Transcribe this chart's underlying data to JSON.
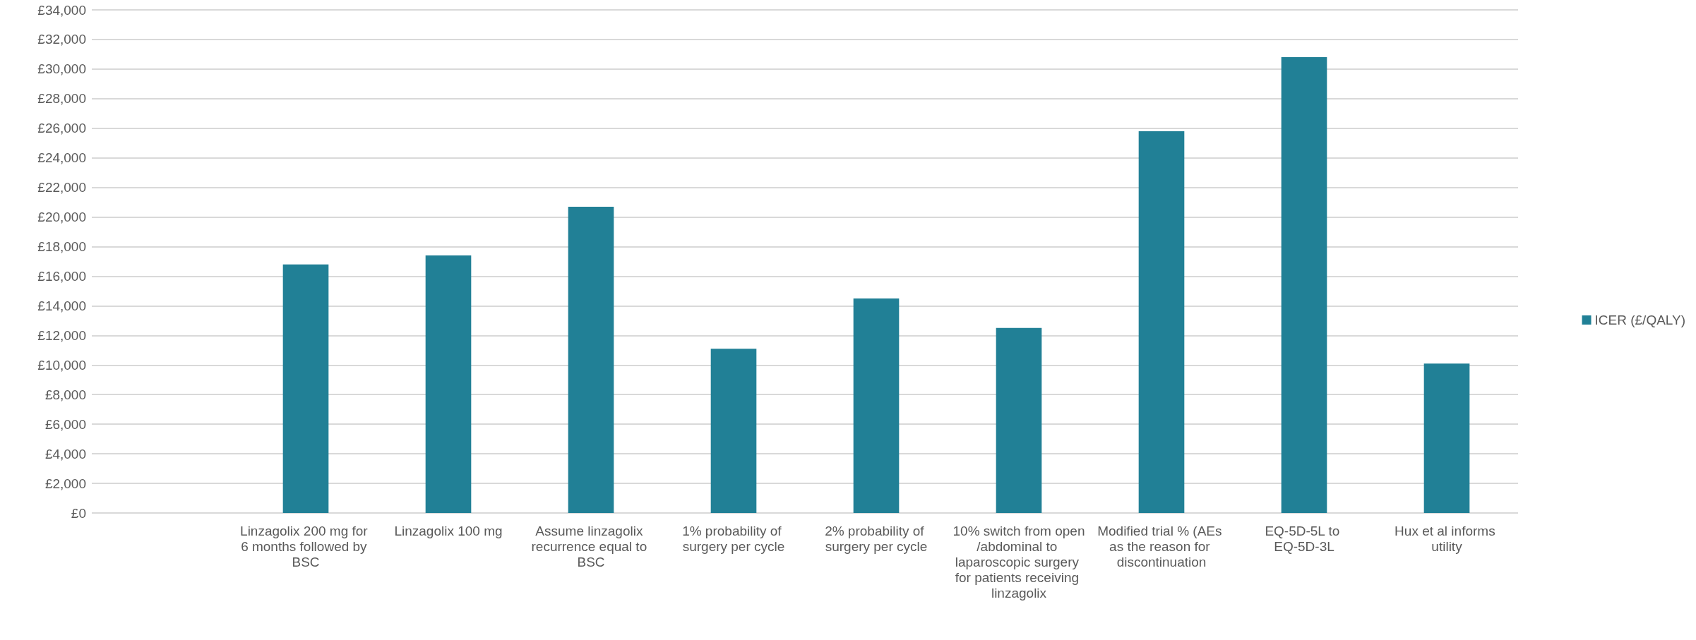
{
  "chart_data": {
    "type": "bar",
    "categories": [
      null,
      "Linzagolix 200 mg for 6 months followed by BSC",
      "Linzagolix 100 mg",
      "Assume linzagolix recurrence equal to BSC",
      "1% probability of surgery per cycle",
      "2% probability of surgery per cycle",
      "10% switch from open/abdominal to laparoscopic surgery for patients receiving linzagolix",
      "Modified trial % (AEs as the reason for discontinuation",
      "EQ-5D-5L to EQ-5D-3L",
      "Hux et al informs utility"
    ],
    "series": [
      {
        "name": "ICER (£/QALY)",
        "color": "#218096",
        "values": [
          null,
          16800,
          17400,
          20700,
          11100,
          14500,
          12500,
          25800,
          30800,
          10100
        ]
      }
    ],
    "ylim": [
      0,
      34000
    ],
    "yticks": [
      {
        "value": 0,
        "label": "£0"
      },
      {
        "value": 2000,
        "label": "£2,000"
      },
      {
        "value": 4000,
        "label": "£4,000"
      },
      {
        "value": 6000,
        "label": "£6,000"
      },
      {
        "value": 8000,
        "label": "£8,000"
      },
      {
        "value": 10000,
        "label": "£10,000"
      },
      {
        "value": 12000,
        "label": "£12,000"
      },
      {
        "value": 14000,
        "label": "£14,000"
      },
      {
        "value": 16000,
        "label": "£16,000"
      },
      {
        "value": 18000,
        "label": "£18,000"
      },
      {
        "value": 20000,
        "label": "£20,000"
      },
      {
        "value": 22000,
        "label": "£22,000"
      },
      {
        "value": 24000,
        "label": "£24,000"
      },
      {
        "value": 26000,
        "label": "£26,000"
      },
      {
        "value": 28000,
        "label": "£28,000"
      },
      {
        "value": 30000,
        "label": "£30,000"
      },
      {
        "value": 32000,
        "label": "£32,000"
      },
      {
        "value": 34000,
        "label": "£34,000"
      }
    ],
    "grid": "y",
    "legend": "right"
  }
}
